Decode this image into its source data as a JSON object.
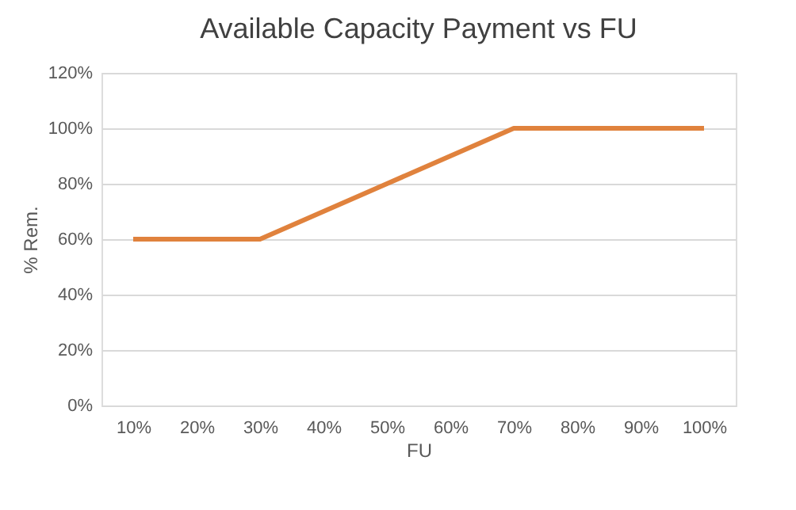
{
  "chart_data": {
    "type": "line",
    "title": "Available Capacity Payment vs FU",
    "xlabel": "FU",
    "ylabel": "% Rem.",
    "categories": [
      "10%",
      "20%",
      "30%",
      "40%",
      "50%",
      "60%",
      "70%",
      "80%",
      "90%",
      "100%"
    ],
    "series": [
      {
        "color": "#e0823d",
        "values": [
          60,
          60,
          60,
          70,
          80,
          90,
          100,
          100,
          100,
          100
        ]
      }
    ],
    "ylim": [
      0,
      120
    ],
    "yticks": [
      {
        "value": 0,
        "label": "0%"
      },
      {
        "value": 20,
        "label": "20%"
      },
      {
        "value": 40,
        "label": "40%"
      },
      {
        "value": 60,
        "label": "60%"
      },
      {
        "value": 80,
        "label": "80%"
      },
      {
        "value": 100,
        "label": "100%"
      },
      {
        "value": 120,
        "label": "120%"
      }
    ],
    "grid": "y",
    "marker": "none",
    "line_style": "solid"
  }
}
